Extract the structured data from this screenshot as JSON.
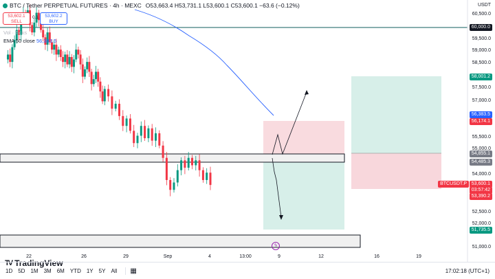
{
  "header": {
    "symbol": "BTC / Tether PERPETUAL FUTURES · 4h · MEXC",
    "ohlc": "O53,663.4 H53,731.1 L53,600.1 C53,600.1 −63.6 (−0.12%)",
    "sell_price": "53,602.1",
    "sell_label": "SELL",
    "buy_price": "53,602.2",
    "buy_label": "BUY",
    "spread": "0.1",
    "volume_label": "Vol · Ticks",
    "ema_label": "EMA 50 close",
    "ema_value": "56,383.5"
  },
  "price_axis": {
    "currency": "USDT",
    "ticks": [
      "60,500.0",
      "60,000.0",
      "59,500.0",
      "59,000.0",
      "58,500.0",
      "58,000.0",
      "57,500.0",
      "57,000.0",
      "56,500.0",
      "56,000.0",
      "55,500.0",
      "55,000.0",
      "54,500.0",
      "54,000.0",
      "53,500.0",
      "53,000.0",
      "52,500.0",
      "52,000.0",
      "51,500.0",
      "51,000.0"
    ],
    "tags": {
      "level_60000": "60,000.0",
      "target": "58,001.2",
      "ema": "56,383.5",
      "upper_entry": "56,174.1",
      "mid_level": "54,855.1",
      "lower_level": "54,485.3",
      "symbol_tag": "BTCUSDT.P",
      "last_price": "53,600.1",
      "countdown": "03:57:42",
      "stop_low": "53,390.2",
      "deep_target": "51,735.5"
    }
  },
  "time_axis": {
    "ticks": [
      "22",
      "26",
      "29",
      "Sep",
      "4",
      "13:00",
      "9",
      "12",
      "16",
      "19"
    ]
  },
  "branding": {
    "logo_text": "TradingView",
    "logo_mark": "TV"
  },
  "bottom_bar": {
    "timeframes": [
      "1D",
      "5D",
      "1M",
      "3M",
      "6M",
      "YTD",
      "1Y",
      "5Y",
      "All"
    ],
    "clock": "17:02:18 (UTC+1)"
  },
  "colors": {
    "up": "#089981",
    "down": "#f23645",
    "ema": "#2962ff",
    "target_zone": "#b2dfdb",
    "stop_zone": "#f8bbd0"
  },
  "chart_data": {
    "type": "candlestick",
    "ema_series_name": "EMA 50 close"
  }
}
